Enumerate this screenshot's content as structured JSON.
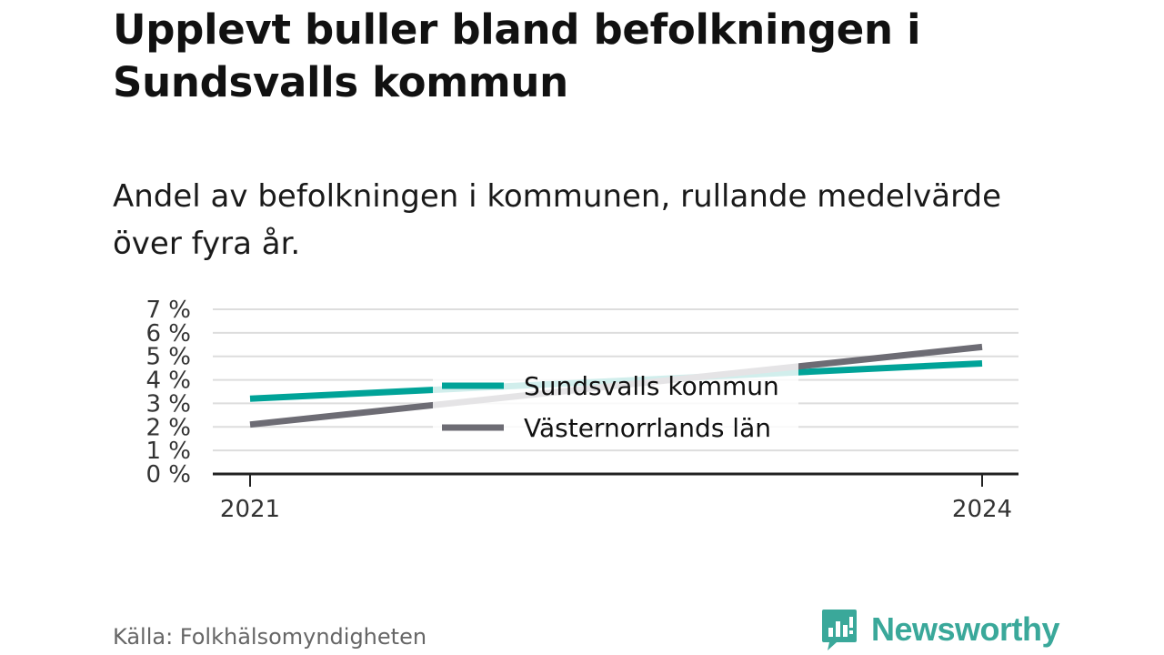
{
  "header": {
    "title": "Upplevt buller bland befolkningen i Sundsvalls kommun",
    "subtitle": "Andel av befolkningen i kommunen, rullande medelvärde över fyra år."
  },
  "footer": {
    "source": "Källa: Folkhälsomyndigheten",
    "brand": "Newsworthy",
    "brand_icon": "newsworthy-logo-icon"
  },
  "colors": {
    "sundsvall": "#00a398",
    "vasternorrland": "#6d6c74",
    "brand": "#3aa89a"
  },
  "chart_data": {
    "type": "line",
    "x": [
      2021,
      2024
    ],
    "x_tick_labels": [
      "2021",
      "2024"
    ],
    "ylim": [
      0,
      7
    ],
    "y_ticks": [
      0,
      1,
      2,
      3,
      4,
      5,
      6,
      7
    ],
    "y_tick_labels": [
      "0 %",
      "1 %",
      "2 %",
      "3 %",
      "4 %",
      "5 %",
      "6 %",
      "7 %"
    ],
    "grid": true,
    "legend_position": "center",
    "series": [
      {
        "name": "Sundsvalls kommun",
        "values": [
          3.2,
          4.7
        ]
      },
      {
        "name": "Västernorrlands län",
        "values": [
          2.1,
          5.4
        ]
      }
    ]
  }
}
